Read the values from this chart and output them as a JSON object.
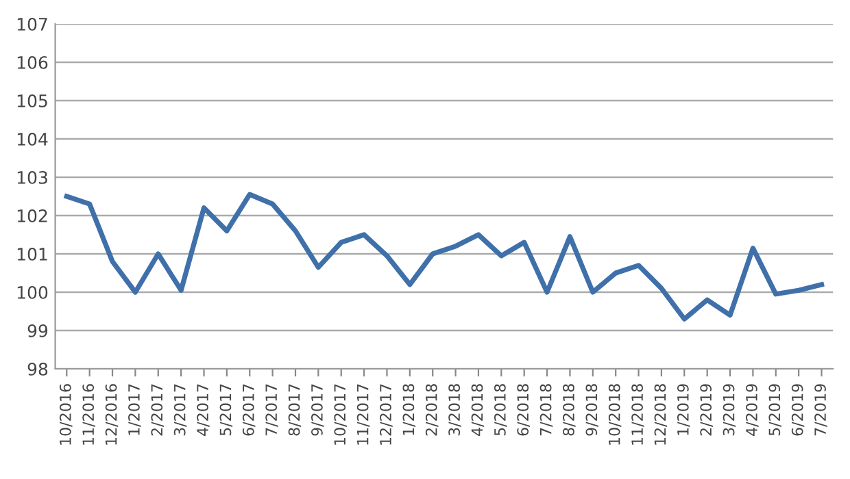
{
  "chart_data": {
    "type": "line",
    "categories": [
      "10/2016",
      "11/2016",
      "12/2016",
      "1/2017",
      "2/2017",
      "3/2017",
      "4/2017",
      "5/2017",
      "6/2017",
      "7/2017",
      "8/2017",
      "9/2017",
      "10/2017",
      "11/2017",
      "12/2017",
      "1/2018",
      "2/2018",
      "3/2018",
      "4/2018",
      "5/2018",
      "6/2018",
      "7/2018",
      "8/2018",
      "9/2018",
      "10/2018",
      "11/2018",
      "12/2018",
      "1/2019",
      "2/2019",
      "3/2019",
      "4/2019",
      "5/2019",
      "6/2019",
      "7/2019"
    ],
    "series": [
      {
        "color": "#3f70aa",
        "values": [
          102.5,
          102.3,
          100.8,
          100.0,
          101.0,
          100.05,
          102.2,
          101.6,
          102.55,
          102.3,
          101.6,
          100.65,
          101.3,
          101.5,
          100.95,
          100.2,
          101.0,
          101.2,
          101.5,
          100.95,
          101.3,
          100.0,
          101.45,
          100.0,
          100.5,
          100.7,
          100.1,
          99.3,
          99.8,
          99.4,
          101.15,
          99.95,
          100.05,
          100.2
        ]
      }
    ],
    "ylim": [
      98,
      107
    ],
    "yticks": [
      98,
      99,
      100,
      101,
      102,
      103,
      104,
      105,
      106,
      107
    ],
    "grid": "y",
    "legend": false,
    "marker": "none",
    "line_style": "solid"
  }
}
